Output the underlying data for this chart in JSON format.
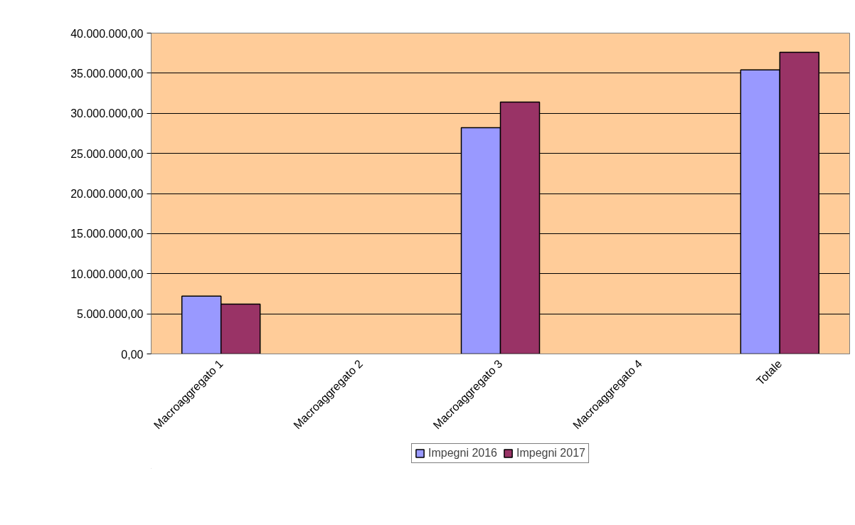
{
  "chart_data": {
    "type": "bar",
    "categories": [
      "Macroaggregato 1",
      "Macroaggregato 2",
      "Macroaggregato 3",
      "Macroaggregato 4",
      "Totale"
    ],
    "series": [
      {
        "name": "Impegni 2016",
        "color": "#9999ff",
        "values": [
          7200000,
          null,
          28200000,
          null,
          35400000
        ]
      },
      {
        "name": "Impegni 2017",
        "color": "#993366",
        "values": [
          6200000,
          null,
          31400000,
          null,
          37600000
        ]
      }
    ],
    "ylim": [
      0,
      40000000
    ],
    "yticks": [
      {
        "value": 0,
        "label": "0,00"
      },
      {
        "value": 5000000,
        "label": "5.000.000,00"
      },
      {
        "value": 10000000,
        "label": "10.000.000,00"
      },
      {
        "value": 15000000,
        "label": "15.000.000,00"
      },
      {
        "value": 20000000,
        "label": "20.000.000,00"
      },
      {
        "value": 25000000,
        "label": "25.000.000,00"
      },
      {
        "value": 30000000,
        "label": "30.000.000,00"
      },
      {
        "value": 35000000,
        "label": "35.000.000,00"
      },
      {
        "value": 40000000,
        "label": "40.000.000,00"
      }
    ],
    "grid": "y",
    "legend": "bottom"
  }
}
